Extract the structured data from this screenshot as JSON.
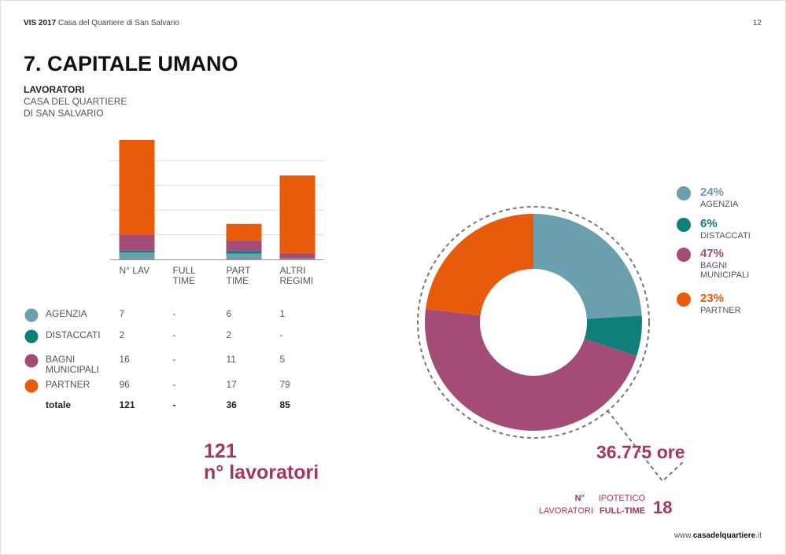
{
  "header": {
    "brand": "VIS 2017",
    "subtitle": "Casa del Quartiere di San Salvario",
    "page": "12"
  },
  "title": "7. CAPITALE UMANO",
  "section": {
    "title": "LAVORATORI",
    "subtitle": "CASA DEL QUARTIERE DI SAN SALVARIO"
  },
  "chart_data": [
    {
      "type": "bar",
      "stacked": true,
      "categories": [
        "N° LAV",
        "FULL TIME",
        "PART TIME",
        "ALTRI REGIMI"
      ],
      "series": [
        {
          "name": "AGENZIA",
          "color": "#6a9fae",
          "values": [
            7,
            null,
            6,
            1
          ],
          "value_labels": [
            "7",
            "-",
            "6",
            "1"
          ]
        },
        {
          "name": "DISTACCATI",
          "color": "#0f7f7a",
          "values": [
            2,
            null,
            2,
            null
          ],
          "value_labels": [
            "2",
            "-",
            "2",
            "-"
          ]
        },
        {
          "name": "BAGNI MUNICIPALI",
          "color": "#a44c78",
          "values": [
            16,
            null,
            11,
            5
          ],
          "value_labels": [
            "16",
            "-",
            "11",
            "5"
          ]
        },
        {
          "name": "PARTNER",
          "color": "#e85b0a",
          "values": [
            96,
            null,
            17,
            79
          ],
          "value_labels": [
            "96",
            "-",
            "17",
            "79"
          ]
        }
      ],
      "totals": {
        "name": "totale",
        "labels": [
          "121",
          "-",
          "36",
          "85"
        ]
      },
      "ylim": [
        0,
        125
      ],
      "yticks": [
        25,
        50,
        75,
        100
      ],
      "grid": true
    },
    {
      "type": "donut",
      "categories": [
        "AGENZIA",
        "DISTACCATI",
        "BAGNI MUNICIPALI",
        "PARTNER"
      ],
      "values": [
        24,
        6,
        47,
        23
      ],
      "value_labels": [
        "24%",
        "6%",
        "47%",
        "23%"
      ],
      "colors": [
        "#6a9fae",
        "#0f7f7a",
        "#a44c78",
        "#e85b0a"
      ]
    }
  ],
  "callouts": {
    "workers": {
      "value": "121",
      "label": "n° lavoratori"
    },
    "hours": "36.775 ore",
    "fulltime": {
      "line1": [
        "N°",
        "IPOTETICO"
      ],
      "line2": [
        "LAVORATORI",
        "FULL-TIME"
      ],
      "value": "18"
    }
  },
  "footer": [
    "www.",
    "casadelquartiere",
    ".it"
  ]
}
